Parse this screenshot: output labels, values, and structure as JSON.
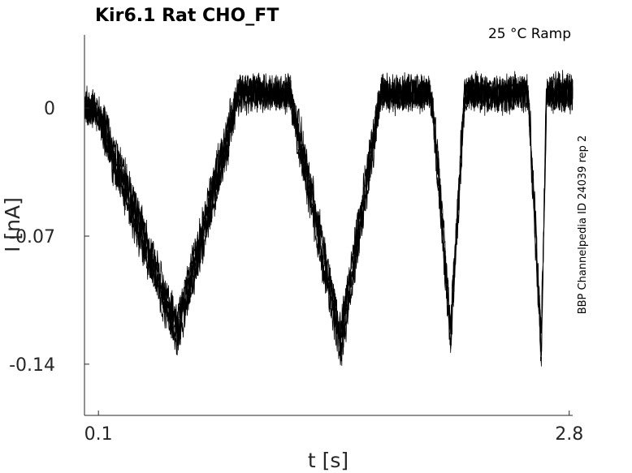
{
  "chart_data": {
    "type": "line",
    "title": "Kir6.1  Rat  CHO_FT",
    "annotation": "25 °C  Ramp",
    "side_label": "BBP Channelpedia ID 24039 rep 2",
    "xlabel": "t [s]",
    "ylabel": "I [nA]",
    "xlim": [
      0.02,
      2.82
    ],
    "ylim": [
      -0.168,
      0.04
    ],
    "x_ticks": [
      0.1,
      2.8
    ],
    "x_tick_labels": [
      "0.1",
      "2.8"
    ],
    "y_ticks": [
      0,
      -0.07,
      -0.14
    ],
    "y_tick_labels": [
      "0",
      "-0.07",
      "-0.14"
    ],
    "grid": false,
    "colors": {
      "trace": "#000000",
      "axis": "#262626"
    },
    "series": [
      {
        "values": [
          [
            0.02,
            0.0
          ],
          [
            0.08,
            0.0
          ],
          [
            0.11,
            -0.006
          ],
          [
            0.55,
            -0.122
          ],
          [
            0.88,
            -0.002
          ],
          [
            0.9,
            0.008
          ],
          [
            1.2,
            0.008
          ],
          [
            1.22,
            -0.002
          ],
          [
            1.49,
            -0.128
          ],
          [
            1.72,
            0.008
          ],
          [
            2.0,
            0.008
          ],
          [
            2.02,
            -0.002
          ],
          [
            2.12,
            -0.124
          ],
          [
            2.2,
            0.008
          ],
          [
            2.56,
            0.008
          ],
          [
            2.57,
            -0.002
          ],
          [
            2.64,
            -0.13
          ],
          [
            2.67,
            0.008
          ],
          [
            2.82,
            0.008
          ]
        ]
      }
    ]
  }
}
